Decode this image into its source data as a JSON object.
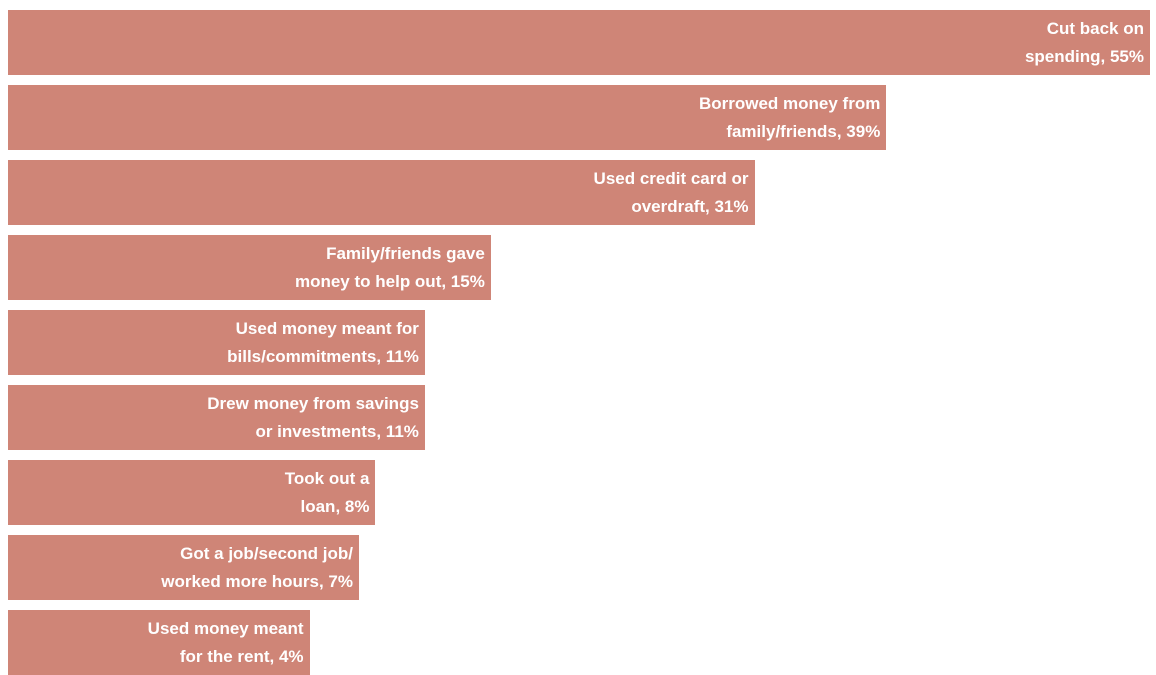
{
  "chart_data": {
    "type": "bar",
    "color": "#cf8577",
    "label_color": "#ffffff",
    "values": [
      55,
      39,
      31,
      15,
      11,
      11,
      8,
      7,
      4
    ],
    "value_labels": [
      "Cut back on\nspending, 55%",
      "Borrowed money from\nfamily/friends, 39%",
      "Used credit card or\noverdraft, 31%",
      "Family/friends gave\nmoney to help out, 15%",
      "Used money meant for\nbills/commitments, 11%",
      "Drew money from savings\nor investments, 11%",
      "Took out a\nloan, 8%",
      "Got a job/second job/\nworked more hours, 7%",
      "Used money meant\nfor the rent, 4%"
    ],
    "xlim": [
      -14.3,
      55
    ]
  }
}
